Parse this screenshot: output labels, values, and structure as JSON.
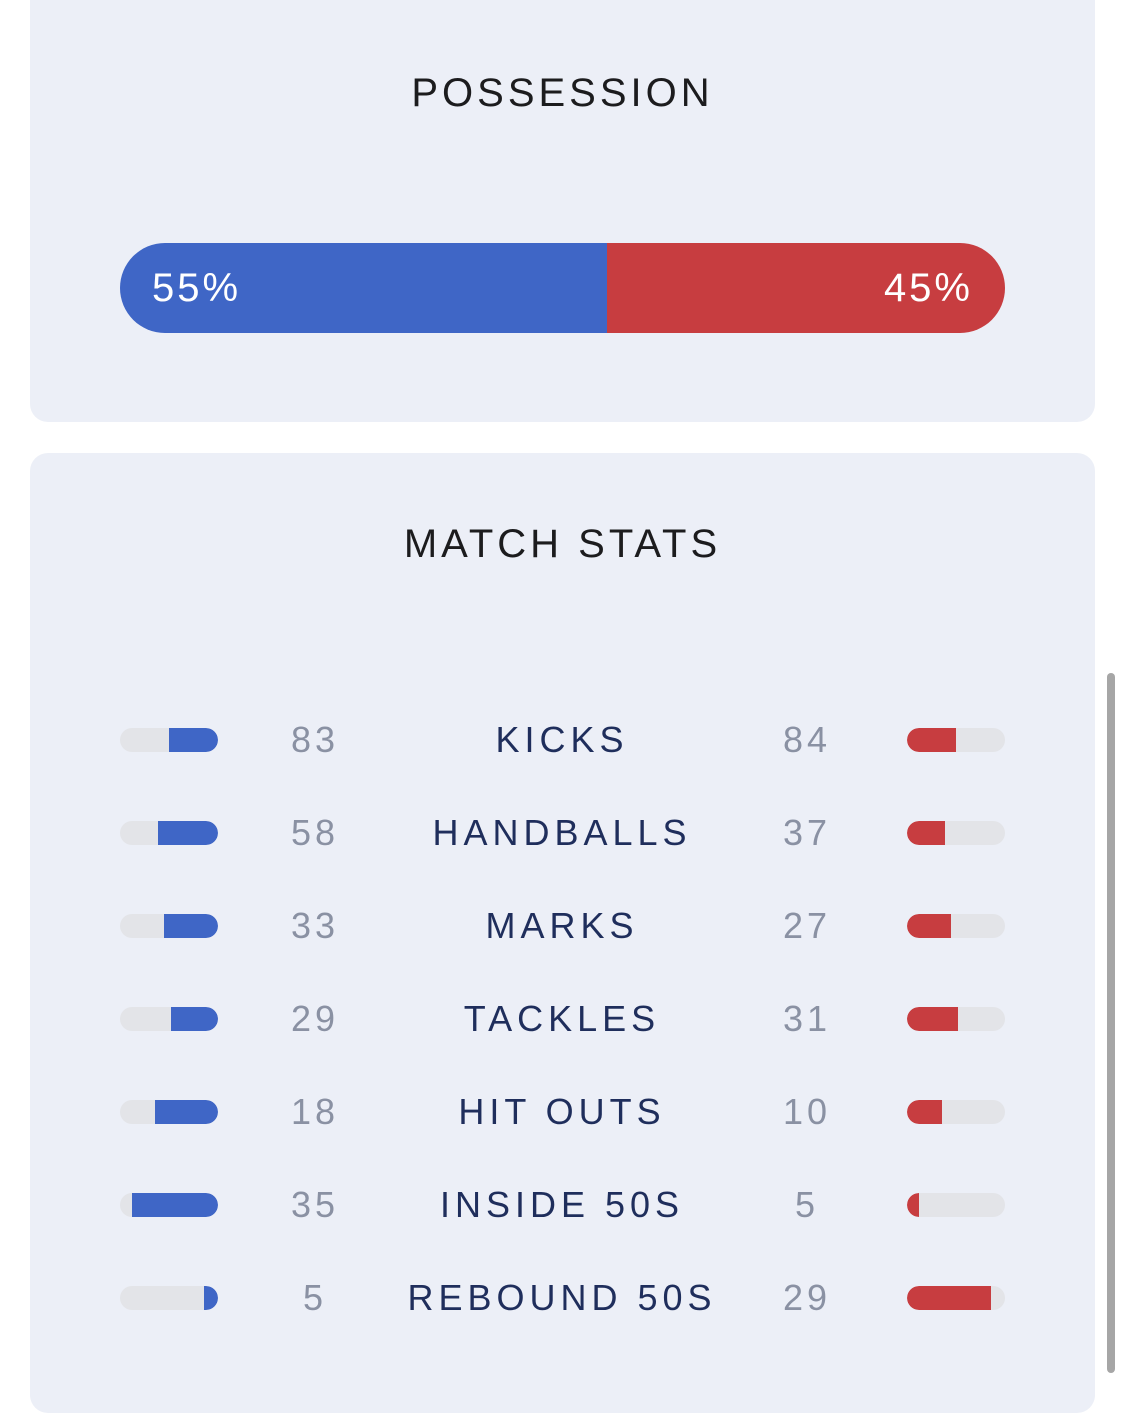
{
  "possession": {
    "title": "POSSESSION",
    "home_pct": 55,
    "away_pct": 45,
    "home_label": "55%",
    "away_label": "45%",
    "home_color": "#3f66c6",
    "away_color": "#c73d40"
  },
  "match_stats": {
    "title": "MATCH STATS",
    "rows": [
      {
        "label": "KICKS",
        "home": "83",
        "away": "84",
        "home_fill": 0.5,
        "away_fill": 0.5
      },
      {
        "label": "HANDBALLS",
        "home": "58",
        "away": "37",
        "home_fill": 0.61,
        "away_fill": 0.39
      },
      {
        "label": "MARKS",
        "home": "33",
        "away": "27",
        "home_fill": 0.55,
        "away_fill": 0.45
      },
      {
        "label": "TACKLES",
        "home": "29",
        "away": "31",
        "home_fill": 0.48,
        "away_fill": 0.52
      },
      {
        "label": "HIT OUTS",
        "home": "18",
        "away": "10",
        "home_fill": 0.64,
        "away_fill": 0.36
      },
      {
        "label": "INSIDE 50S",
        "home": "35",
        "away": "5",
        "home_fill": 0.875,
        "away_fill": 0.125
      },
      {
        "label": "REBOUND 50S",
        "home": "5",
        "away": "29",
        "home_fill": 0.147,
        "away_fill": 0.853
      }
    ]
  }
}
